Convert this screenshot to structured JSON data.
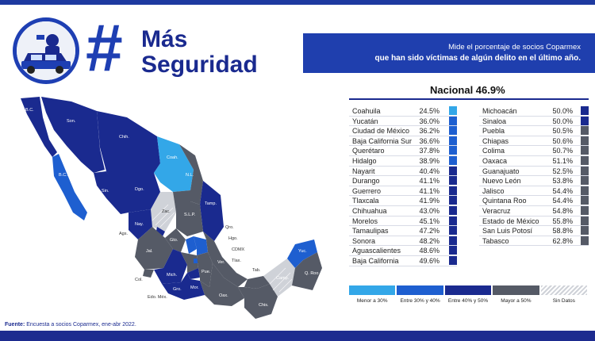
{
  "header": {
    "hash": "#",
    "title_line1": "Más",
    "title_line2": "Seguridad",
    "subtitle_line1": "Mide el porcentaje de socios Coparmex",
    "subtitle_line2": "que han sido víctimas de algún delito en el último año."
  },
  "nacional": "Nacional 46.9%",
  "colors": {
    "menor30": "#33a7e8",
    "entre30_40": "#1e5fd0",
    "entre40_50": "#1a2a8f",
    "mayor50": "#555a66",
    "sin_datos": "#cfd2d8"
  },
  "chart_data": {
    "type": "table",
    "title": "Nacional 46.9%",
    "national_value": 46.9,
    "columns": [
      [
        {
          "state": "Coahuila",
          "value": "24.5%",
          "category": "menor30"
        },
        {
          "state": "Yucatán",
          "value": "36.0%",
          "category": "entre30_40"
        },
        {
          "state": "Ciudad de México",
          "value": "36.2%",
          "category": "entre30_40"
        },
        {
          "state": "Baja California Sur",
          "value": "36.6%",
          "category": "entre30_40"
        },
        {
          "state": "Querétaro",
          "value": "37.8%",
          "category": "entre30_40"
        },
        {
          "state": "Hidalgo",
          "value": "38.9%",
          "category": "entre30_40"
        },
        {
          "state": "Nayarit",
          "value": "40.4%",
          "category": "entre40_50"
        },
        {
          "state": "Durango",
          "value": "41.1%",
          "category": "entre40_50"
        },
        {
          "state": "Guerrero",
          "value": "41.1%",
          "category": "entre40_50"
        },
        {
          "state": "Tlaxcala",
          "value": "41.9%",
          "category": "entre40_50"
        },
        {
          "state": "Chihuahua",
          "value": "43.0%",
          "category": "entre40_50"
        },
        {
          "state": "Morelos",
          "value": "45.1%",
          "category": "entre40_50"
        },
        {
          "state": "Tamaulipas",
          "value": "47.2%",
          "category": "entre40_50"
        },
        {
          "state": "Sonora",
          "value": "48.2%",
          "category": "entre40_50"
        },
        {
          "state": "Aguascalientes",
          "value": "48.6%",
          "category": "entre40_50"
        },
        {
          "state": "Baja California",
          "value": "49.6%",
          "category": "entre40_50"
        }
      ],
      [
        {
          "state": "Michoacán",
          "value": "50.0%",
          "category": "entre40_50"
        },
        {
          "state": "Sinaloa",
          "value": "50.0%",
          "category": "entre40_50"
        },
        {
          "state": "Puebla",
          "value": "50.5%",
          "category": "mayor50"
        },
        {
          "state": "Chiapas",
          "value": "50.6%",
          "category": "mayor50"
        },
        {
          "state": "Colima",
          "value": "50.7%",
          "category": "mayor50"
        },
        {
          "state": "Oaxaca",
          "value": "51.1%",
          "category": "mayor50"
        },
        {
          "state": "Guanajuato",
          "value": "52.5%",
          "category": "mayor50"
        },
        {
          "state": "Nuevo León",
          "value": "53.8%",
          "category": "mayor50"
        },
        {
          "state": "Jalisco",
          "value": "54.4%",
          "category": "mayor50"
        },
        {
          "state": "Quintana Roo",
          "value": "54.4%",
          "category": "mayor50"
        },
        {
          "state": "Veracruz",
          "value": "54.8%",
          "category": "mayor50"
        },
        {
          "state": "Estado de México",
          "value": "55.8%",
          "category": "mayor50"
        },
        {
          "state": "San Luis Potosí",
          "value": "58.8%",
          "category": "mayor50"
        },
        {
          "state": "Tabasco",
          "value": "62.8%",
          "category": "mayor50"
        }
      ]
    ],
    "legend": [
      {
        "key": "menor30",
        "label": "Menor a 30%"
      },
      {
        "key": "entre30_40",
        "label": "Entre 30% y 40%"
      },
      {
        "key": "entre40_50",
        "label": "Entre 40% y 50%"
      },
      {
        "key": "mayor50",
        "label": "Mayor a 50%"
      },
      {
        "key": "sin_datos",
        "label": "Sin Datos"
      }
    ]
  },
  "map_labels": {
    "bc": "B.C.",
    "bcs": "B.C.S.",
    "son": "Son.",
    "chih": "Chih.",
    "coah": "Coah.",
    "nl": "N.L.",
    "tamp": "Tamp.",
    "sin": "Sin.",
    "dgo": "Dgo.",
    "zac": "Zac.",
    "slp": "S.L.P.",
    "nay": "Nay.",
    "ags": "Ags.",
    "jal": "Jal.",
    "gto": "Gto.",
    "qro": "Qro.",
    "hgo": "Hgo.",
    "col": "Col.",
    "mich": "Mich.",
    "edomex": "Edo. Méx.",
    "cdmx": "CDMX",
    "mor": "Mor.",
    "pue": "Pue.",
    "tlax": "Tlax.",
    "ver": "Ver.",
    "gro": "Gro.",
    "oax": "Oax.",
    "chis": "Chis.",
    "tab": "Tab.",
    "camp": "Camp.",
    "yuc": "Yuc.",
    "qroo": "Q. Roo"
  },
  "footer": {
    "fuente_label": "Fuente:",
    "fuente_text": "Encuesta a socios Coparmex, ene-abr 2022."
  }
}
